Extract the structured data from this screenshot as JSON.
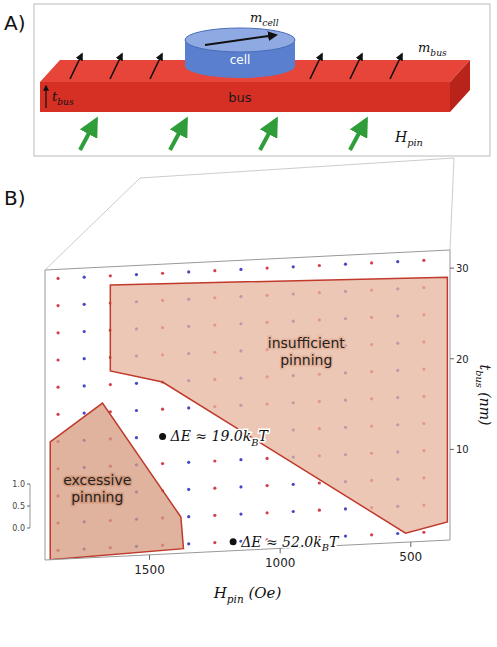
{
  "panel_a": {
    "letter": "A)",
    "cell": "cell",
    "bus": "bus",
    "m_cell": {
      "main": "m",
      "sub": "cell"
    },
    "m_bus": {
      "main": "m",
      "sub": "bus"
    },
    "t_bus": {
      "main": "t",
      "sub": "bus"
    },
    "h_pin": {
      "main": "H",
      "sub": "pin"
    }
  },
  "chart_data": {
    "type": "scatter",
    "letter": "B)",
    "x_label": {
      "main": "H",
      "sub": "pin",
      "unit": "(Oe)"
    },
    "y_label": {
      "main": "t",
      "sub": "bus",
      "unit": "(nm)"
    },
    "xlim": [
      1900,
      350
    ],
    "xticks": [
      1500,
      1000,
      500
    ],
    "ylim": [
      0,
      32
    ],
    "yticks": [
      10,
      20,
      30
    ],
    "zlim": [
      0,
      1
    ],
    "zticks": [
      {
        "value": 1,
        "label": "1.0"
      },
      {
        "value": 0.5,
        "label": "0.5"
      },
      {
        "value": 0,
        "label": "0.0"
      }
    ],
    "dots": {
      "grid_x": [
        1850,
        1750,
        1650,
        1550,
        1450,
        1350,
        1250,
        1150,
        1050,
        950,
        850,
        750,
        650,
        550,
        450
      ],
      "grid_y": [
        1,
        4,
        7,
        10,
        13,
        16,
        19,
        22,
        25,
        28,
        31
      ],
      "colors": [
        "#d2404f",
        "#4848c4"
      ]
    },
    "regions": [
      {
        "label": "insufficient pinning",
        "x": [
          1650,
          360,
          360,
          520,
          1450,
          1650
        ],
        "y": [
          30,
          29,
          2,
          1,
          19,
          20.5
        ],
        "color": "#e6b49c"
      },
      {
        "label": "excessive pinning",
        "x": [
          1880,
          1680,
          1380,
          1370,
          1880
        ],
        "y": [
          13,
          17,
          4,
          0.5,
          0
        ],
        "color": "#d49a7e"
      }
    ],
    "annotations": [
      {
        "x": 1450,
        "y": 13,
        "label": {
          "pre": "ΔE ≈ 19.0k",
          "sub": "B",
          "post": "T"
        }
      },
      {
        "x": 1180,
        "y": 1,
        "label": {
          "pre": "ΔE ≈ 52.0k",
          "sub": "B",
          "post": "T"
        }
      }
    ]
  }
}
